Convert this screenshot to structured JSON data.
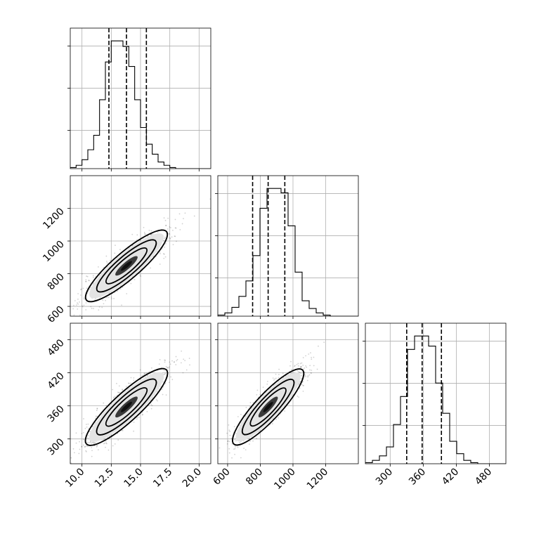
{
  "chart_data": {
    "type": "corner",
    "grid": true,
    "quantile_lines": "dashed",
    "parameters": [
      {
        "range": [
          9.0,
          21.0
        ],
        "ticks": [
          10.0,
          12.5,
          15.0,
          17.5,
          20.0
        ],
        "tick_labels": [
          "10.0",
          "12.5",
          "15.0",
          "17.5",
          "20.0"
        ],
        "quantiles": [
          12.3,
          13.8,
          15.5
        ],
        "hist_counts": [
          1,
          3,
          8,
          17,
          30,
          62,
          96,
          115,
          115,
          110,
          92,
          62,
          37,
          22,
          13,
          6,
          3,
          1,
          0,
          0,
          0,
          0,
          0,
          0
        ]
      },
      {
        "range": [
          540,
          1400
        ],
        "ticks": [
          600,
          800,
          1000,
          1200
        ],
        "tick_labels": [
          "600",
          "800",
          "1000",
          "1200"
        ],
        "quantiles": [
          753,
          848,
          950
        ],
        "hist_counts": [
          1,
          3,
          8,
          18,
          32,
          55,
          98,
          116,
          116,
          112,
          82,
          40,
          14,
          7,
          3,
          1,
          0,
          0,
          0,
          0
        ]
      },
      {
        "range": [
          255,
          510
        ],
        "ticks": [
          300,
          360,
          420,
          480
        ],
        "tick_labels": [
          "300",
          "360",
          "420",
          "480"
        ],
        "quantiles": [
          330,
          358,
          393
        ],
        "hist_counts": [
          1,
          3,
          7,
          15,
          35,
          60,
          102,
          114,
          114,
          105,
          72,
          45,
          20,
          9,
          3,
          1,
          0,
          0,
          0,
          0
        ]
      }
    ]
  }
}
